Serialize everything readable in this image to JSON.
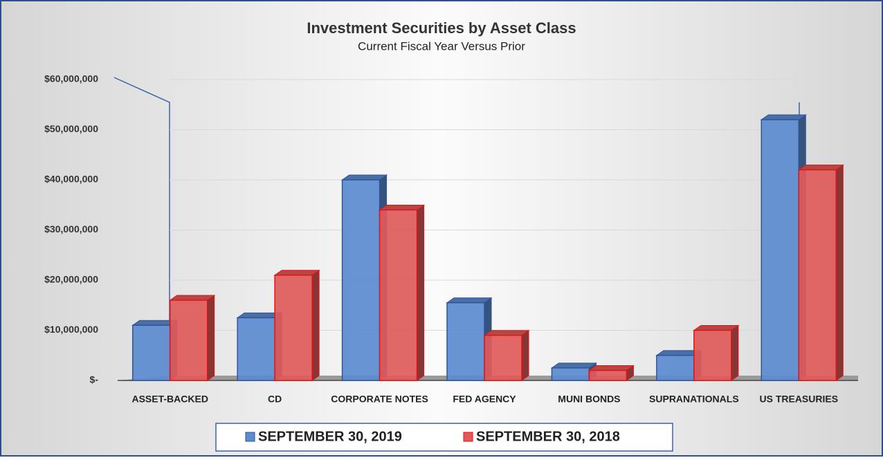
{
  "chart_data": {
    "type": "bar",
    "title": "Investment Securities by Asset Class",
    "subtitle": "Current Fiscal Year Versus Prior",
    "categories": [
      "ASSET-BACKED",
      "CD",
      "CORPORATE NOTES",
      "FED AGENCY",
      "MUNI BONDS",
      "SUPRANATIONALS",
      "US TREASURIES"
    ],
    "series": [
      {
        "name": "SEPTEMBER 30, 2019",
        "color": "#5b8bd0",
        "values": [
          11000000,
          12500000,
          40000000,
          15500000,
          2500000,
          5000000,
          52000000
        ]
      },
      {
        "name": "SEPTEMBER 30, 2018",
        "color": "#e05a5a",
        "values": [
          16000000,
          21000000,
          34000000,
          9000000,
          2000000,
          10000000,
          42000000
        ]
      }
    ],
    "ylim": [
      0,
      60000000
    ],
    "yticks": [
      {
        "value": 0,
        "label": "$-"
      },
      {
        "value": 10000000,
        "label": "$10,000,000"
      },
      {
        "value": 20000000,
        "label": "$20,000,000"
      },
      {
        "value": 30000000,
        "label": "$30,000,000"
      },
      {
        "value": 40000000,
        "label": "$40,000,000"
      },
      {
        "value": 50000000,
        "label": "$50,000,000"
      },
      {
        "value": 60000000,
        "label": "$60,000,000"
      }
    ],
    "grid": true,
    "legend": "bottom"
  }
}
